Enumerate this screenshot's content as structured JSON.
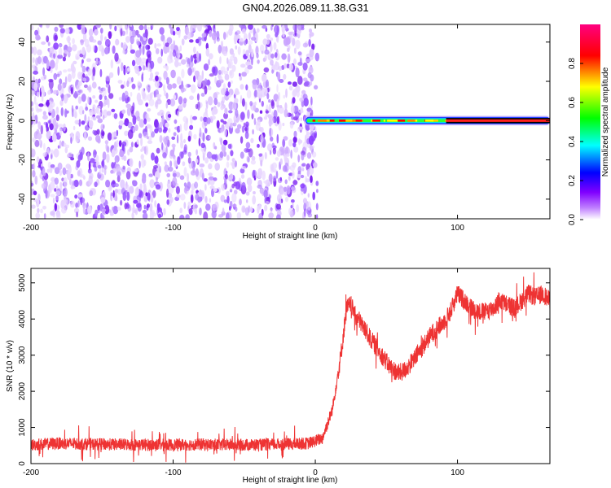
{
  "title": "GN04.2026.089.11.38.G31",
  "chart_data": [
    {
      "type": "heatmap",
      "name": "spectrogram",
      "xlabel": "Height of straight line (km)",
      "ylabel": "Frequency (Hz)",
      "xlim": [
        -200,
        165
      ],
      "ylim": [
        -50,
        49
      ],
      "xticks": [
        -200,
        -100,
        0,
        100
      ],
      "yticks": [
        -40,
        -20,
        0,
        20,
        40
      ],
      "colorbar": {
        "label": "Normalized spectral amplitude",
        "range": [
          0.0,
          1.0
        ],
        "ticks": [
          0.0,
          0.2,
          0.4,
          0.6,
          0.8
        ],
        "tick_labels": [
          "0.0",
          "0.2",
          "0.4",
          "0.6",
          "0.8"
        ],
        "colors": [
          "#ffffff",
          "#8000ff",
          "#0000ff",
          "#00ffff",
          "#00ff00",
          "#ffff00",
          "#ff0000",
          "#ff0080"
        ]
      },
      "regions": [
        {
          "x_range": [
            -200,
            -2
          ],
          "description_level": "noise",
          "amplitude_range": [
            0.05,
            0.2
          ]
        },
        {
          "x_range": [
            -8,
            165
          ],
          "center_frequency_hz": 0,
          "bandwidth_hz": 4,
          "amplitude_range": [
            0.5,
            1.0
          ]
        }
      ]
    },
    {
      "type": "line",
      "name": "snr",
      "xlabel": "Height of straight line (km)",
      "ylabel": "SNR (10 * v/v)",
      "xlim": [
        -200,
        165
      ],
      "ylim": [
        0,
        5400
      ],
      "xticks": [
        -200,
        -100,
        0,
        100
      ],
      "yticks": [
        0,
        1000,
        2000,
        3000,
        4000,
        5000
      ],
      "color": "#ff0000",
      "series": [
        {
          "x": [
            -200,
            -180,
            -160,
            -140,
            -120,
            -100,
            -80,
            -60,
            -40,
            -20,
            -5,
            5,
            12,
            18,
            22,
            25,
            28,
            32,
            38,
            45,
            52,
            58,
            62,
            68,
            75,
            82,
            90,
            95,
            100,
            105,
            110,
            115,
            120,
            125,
            130,
            135,
            140,
            145,
            150,
            155,
            160,
            165
          ],
          "y": [
            520,
            560,
            540,
            530,
            520,
            520,
            530,
            520,
            520,
            540,
            560,
            700,
            1500,
            3000,
            4300,
            4400,
            4100,
            3900,
            3500,
            3100,
            2700,
            2500,
            2550,
            2800,
            3200,
            3600,
            3900,
            4200,
            4700,
            4500,
            4300,
            4200,
            4200,
            4300,
            4500,
            4400,
            4300,
            4500,
            4700,
            4600,
            4700,
            4500
          ]
        }
      ]
    }
  ]
}
